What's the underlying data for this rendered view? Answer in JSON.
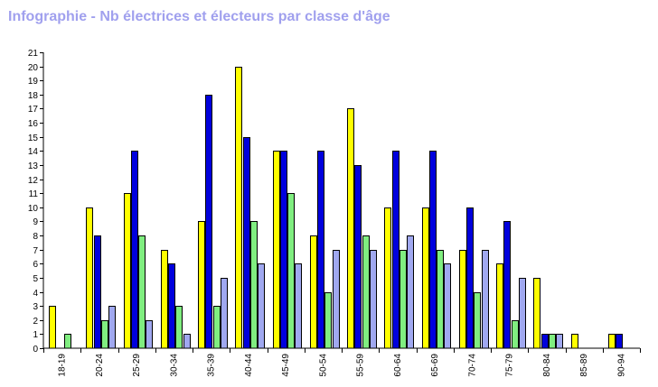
{
  "chart_data": {
    "type": "bar",
    "title": "Infographie - Nb électrices et électeurs par classe d'âge",
    "categories": [
      "18-19",
      "20-24",
      "25-29",
      "30-34",
      "35-39",
      "40-44",
      "45-49",
      "50-54",
      "55-59",
      "60-64",
      "65-69",
      "70-74",
      "75-79",
      "80-84",
      "85-89",
      "90-94"
    ],
    "series": [
      {
        "color": "#ffff00",
        "values": [
          3,
          10,
          11,
          7,
          9,
          20,
          14,
          8,
          17,
          10,
          10,
          7,
          6,
          5,
          1,
          1
        ]
      },
      {
        "color": "#0000dd",
        "values": [
          0,
          8,
          14,
          6,
          18,
          15,
          14,
          14,
          13,
          14,
          14,
          10,
          9,
          1,
          0,
          1
        ]
      },
      {
        "color": "#80ee80",
        "values": [
          1,
          2,
          8,
          3,
          3,
          9,
          11,
          4,
          8,
          7,
          7,
          4,
          2,
          1,
          0,
          0
        ]
      },
      {
        "color": "#a0a8f0",
        "values": [
          0,
          3,
          2,
          1,
          5,
          6,
          6,
          7,
          7,
          8,
          6,
          7,
          5,
          1,
          0,
          0
        ]
      }
    ],
    "ylim": [
      0,
      21
    ],
    "yticks": [
      0,
      1,
      2,
      3,
      4,
      5,
      6,
      7,
      8,
      9,
      10,
      11,
      12,
      13,
      14,
      15,
      16,
      17,
      18,
      19,
      20,
      21
    ],
    "grid": false,
    "legend": "none"
  }
}
